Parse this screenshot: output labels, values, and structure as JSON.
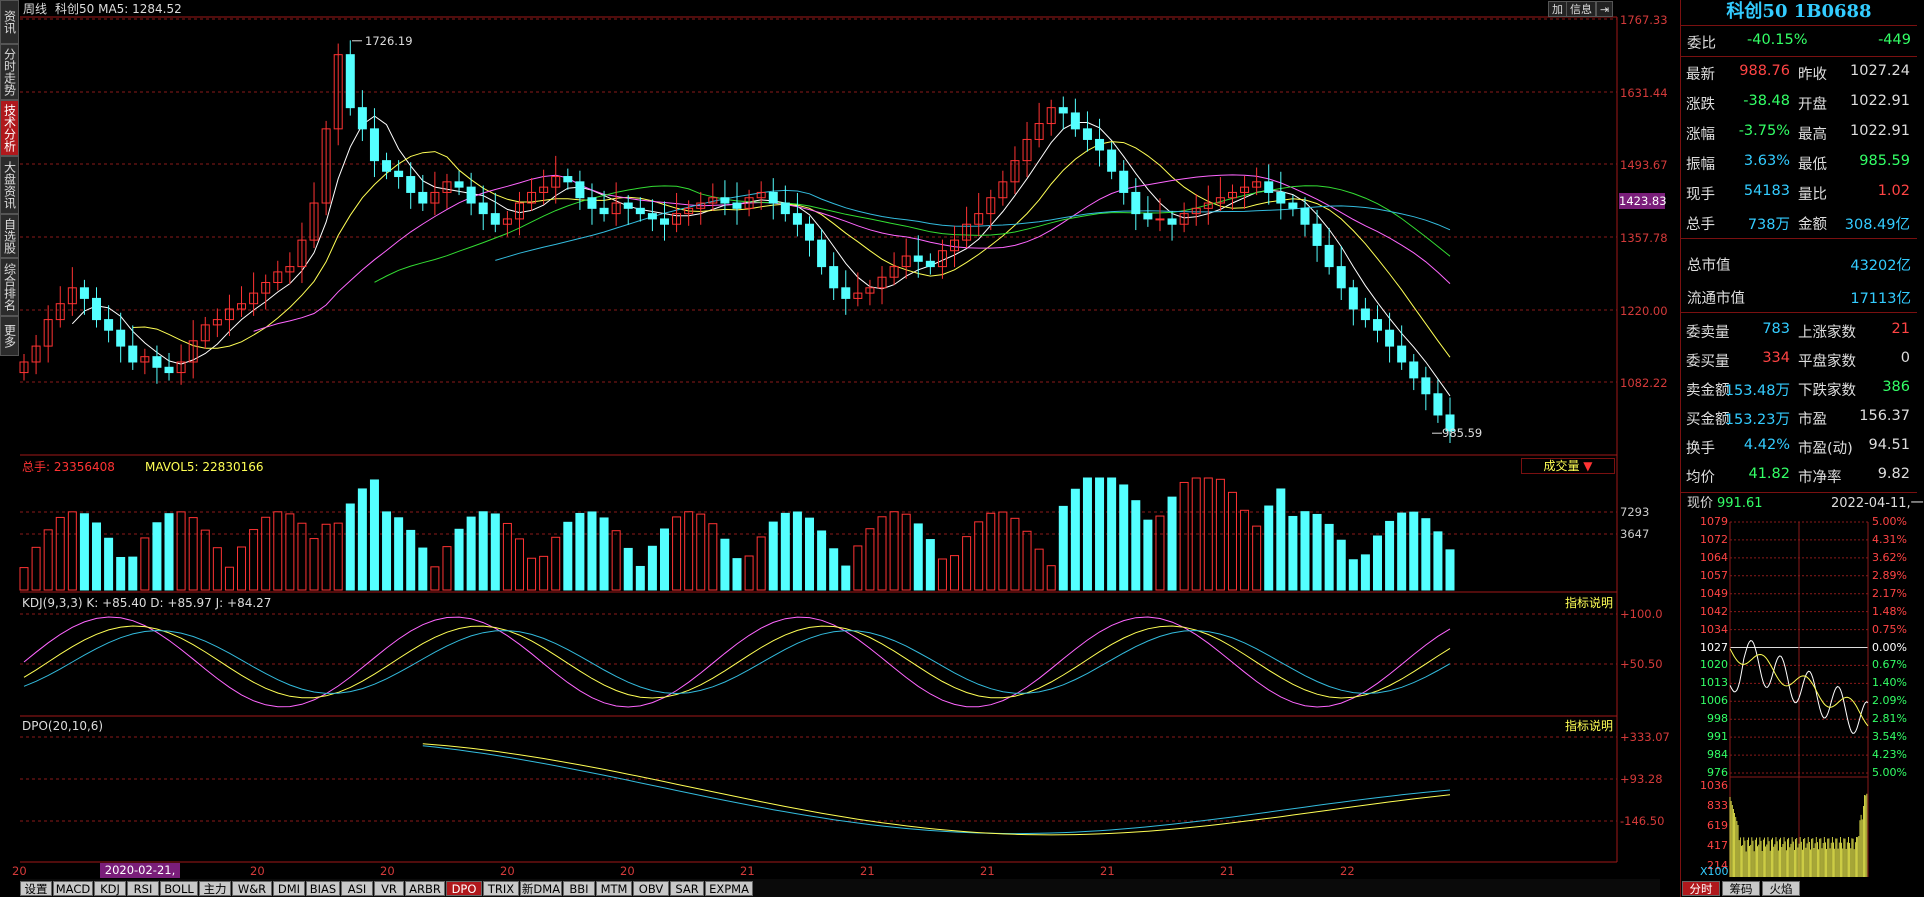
{
  "main_header": {
    "period": "周线",
    "name_ma": "科创50 MA5: 1284.52"
  },
  "top_buttons": [
    "加",
    "信息",
    "⇥"
  ],
  "side_tabs": [
    "资讯",
    "分时走势",
    "技术分析",
    "大盘资讯",
    "自选股",
    "综合排名",
    "更多"
  ],
  "price_axis": [
    "1767.33",
    "1631.44",
    "1493.67",
    "1357.78",
    "1220.00",
    "1082.22"
  ],
  "price_current_tag": "1423.83",
  "annotations": {
    "high": "1726.19",
    "low": "985.59"
  },
  "volume_header": {
    "label": "总手: 23356408",
    "ma": "MAVOL5: 22830166",
    "selector": "成交量"
  },
  "volume_axis": [
    "7293",
    "3647"
  ],
  "kdj_header": {
    "label": "KDJ(9,3,3) K: +85.40 D: +85.97 J: +84.27",
    "button": "指标说明"
  },
  "kdj_axis": [
    "+100.0",
    "+50.50"
  ],
  "dpo_header": {
    "label": "DPO(20,10,6)",
    "button": "指标说明"
  },
  "dpo_axis": [
    "+333.07",
    "+93.28",
    "-146.50"
  ],
  "x_axis": {
    "year_labels": [
      "20",
      "20",
      "20",
      "20",
      "20",
      "21",
      "21",
      "21",
      "21",
      "21",
      "22"
    ],
    "cursor_date": "2020-02-21,五"
  },
  "bottom_tabs": [
    "设置",
    "MACD",
    "KDJ",
    "RSI",
    "BOLL",
    "主力",
    "W&R",
    "DMI",
    "BIAS",
    "ASI",
    "VR",
    "ARBR",
    "DPO",
    "TRIX",
    "新DMA",
    "BBI",
    "MTM",
    "OBV",
    "SAR",
    "EXPMA"
  ],
  "bottom_active": "DPO",
  "quote": {
    "title": "科创50 1B0688",
    "weibi": {
      "label": "委比",
      "pct": "-40.15%",
      "val": "-449"
    },
    "rows": [
      {
        "l1": "最新",
        "v1": "988.76",
        "l2": "昨收",
        "v2": "1027.24"
      },
      {
        "l1": "涨跌",
        "v1": "-38.48",
        "l2": "开盘",
        "v2": "1022.91"
      },
      {
        "l1": "涨幅",
        "v1": "-3.75%",
        "l2": "最高",
        "v2": "1022.91"
      },
      {
        "l1": "振幅",
        "v1": "3.63%",
        "l2": "最低",
        "v2": "985.59"
      },
      {
        "l1": "现手",
        "v1": "54183",
        "l2": "量比",
        "v2": "1.02"
      },
      {
        "l1": "总手",
        "v1": "738万",
        "l2": "金额",
        "v2": "308.49亿"
      }
    ],
    "market_cap": {
      "label": "总市值",
      "value": "43202亿"
    },
    "float_cap": {
      "label": "流通市值",
      "value": "17113亿"
    },
    "rows2": [
      {
        "l1": "委卖量",
        "v1": "783",
        "l2": "上涨家数",
        "v2": "21"
      },
      {
        "l1": "委买量",
        "v1": "334",
        "l2": "平盘家数",
        "v2": "0"
      },
      {
        "l1": "卖金额",
        "v1": "153.48万",
        "l2": "下跌家数",
        "v2": "386"
      },
      {
        "l1": "买金额",
        "v1": "153.23万",
        "l2": "市盈",
        "v2": "156.37"
      },
      {
        "l1": "换手",
        "v1": "4.42%",
        "l2": "市盈(动)",
        "v2": "94.51"
      },
      {
        "l1": "均价",
        "v1": "41.82",
        "l2": "市净率",
        "v2": "9.82"
      }
    ]
  },
  "mini_chart": {
    "now_label": "现价",
    "now_value": "991.61",
    "date": "2022-04-11,一",
    "price_ticks": [
      "1079",
      "1072",
      "1064",
      "1057",
      "1049",
      "1042",
      "1034",
      "1027",
      "1020",
      "1013",
      "1006",
      "998",
      "991",
      "984",
      "976"
    ],
    "pct_ticks": [
      "5.00%",
      "4.31%",
      "3.62%",
      "2.89%",
      "2.17%",
      "1.48%",
      "0.75%",
      "0.00%",
      "0.67%",
      "1.40%",
      "2.09%",
      "2.81%",
      "3.54%",
      "4.23%",
      "5.00%"
    ],
    "vol_ticks": [
      "1036",
      "833",
      "619",
      "417",
      "214"
    ],
    "vol_unit": "X100",
    "tabs": [
      "分时",
      "筹码",
      "火焰"
    ],
    "active_tab": "分时"
  },
  "colors": {
    "up": "#ff3333",
    "down": "#54ffff",
    "grid": "#8a1a1a",
    "ma1": "#ffffff",
    "ma2": "#ffff55",
    "ma3": "#ff66ff",
    "ma4": "#33dd33",
    "ma5": "#33bbdd"
  }
}
